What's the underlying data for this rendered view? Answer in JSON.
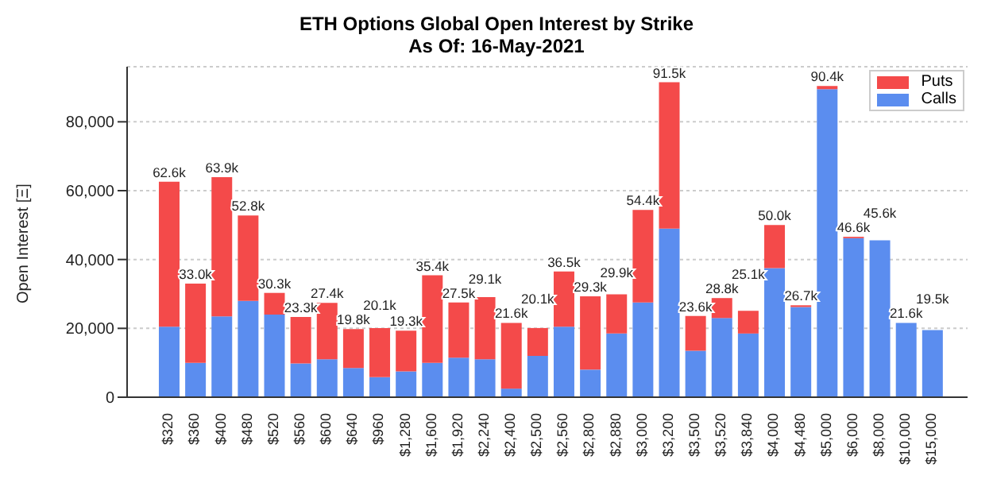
{
  "chart_data": {
    "type": "bar",
    "title": "ETH Options Global Open Interest by Strike",
    "subtitle": "As Of: 16-May-2021",
    "ylabel": "Open Interest [Ξ]",
    "categories": [
      "$320",
      "$360",
      "$400",
      "$480",
      "$520",
      "$560",
      "$600",
      "$640",
      "$960",
      "$1,280",
      "$1,600",
      "$1,920",
      "$2,240",
      "$2,400",
      "$2,500",
      "$2,560",
      "$2,800",
      "$2,880",
      "$3,000",
      "$3,200",
      "$3,500",
      "$3,520",
      "$3,840",
      "$4,000",
      "$4,480",
      "$5,000",
      "$6,000",
      "$8,000",
      "$10,000",
      "$15,000"
    ],
    "series": [
      {
        "name": "Calls",
        "color": "#5b8def",
        "values": [
          20500,
          10000,
          23500,
          28000,
          24000,
          9800,
          11000,
          8500,
          5800,
          7500,
          10000,
          11500,
          11000,
          2500,
          12000,
          20500,
          8000,
          18500,
          27500,
          49000,
          13500,
          23000,
          18500,
          37500,
          26200,
          89500,
          46200,
          45600,
          21600,
          19500
        ]
      },
      {
        "name": "Puts",
        "color": "#f44a4a",
        "values": [
          42100,
          23000,
          40400,
          24800,
          6300,
          13500,
          16400,
          11300,
          14300,
          11800,
          25400,
          16000,
          18100,
          19100,
          8100,
          16000,
          21300,
          11400,
          26900,
          42500,
          10100,
          5800,
          6600,
          12500,
          500,
          900,
          400,
          0,
          0,
          0
        ]
      }
    ],
    "stacked": true,
    "totals": [
      "62.6k",
      "33.0k",
      "63.9k",
      "52.8k",
      "30.3k",
      "23.3k",
      "27.4k",
      "19.8k",
      "20.1k",
      "19.3k",
      "35.4k",
      "27.5k",
      "29.1k",
      "21.6k",
      "20.1k",
      "36.5k",
      "29.3k",
      "29.9k",
      "54.4k",
      "91.5k",
      "23.6k",
      "28.8k",
      "25.1k",
      "50.0k",
      "26.7k",
      "90.4k",
      "46.6k",
      "45.6k",
      "21.6k",
      "19.5k"
    ],
    "ylim": [
      0,
      96000
    ],
    "yticks": [
      0,
      {
        "value": 20000,
        "label": "20,000"
      },
      {
        "value": 40000,
        "label": "40,000"
      },
      {
        "value": 60000,
        "label": "60,000"
      },
      {
        "value": 80000,
        "label": "80,000"
      }
    ],
    "grid": "y",
    "legend": "top right"
  }
}
